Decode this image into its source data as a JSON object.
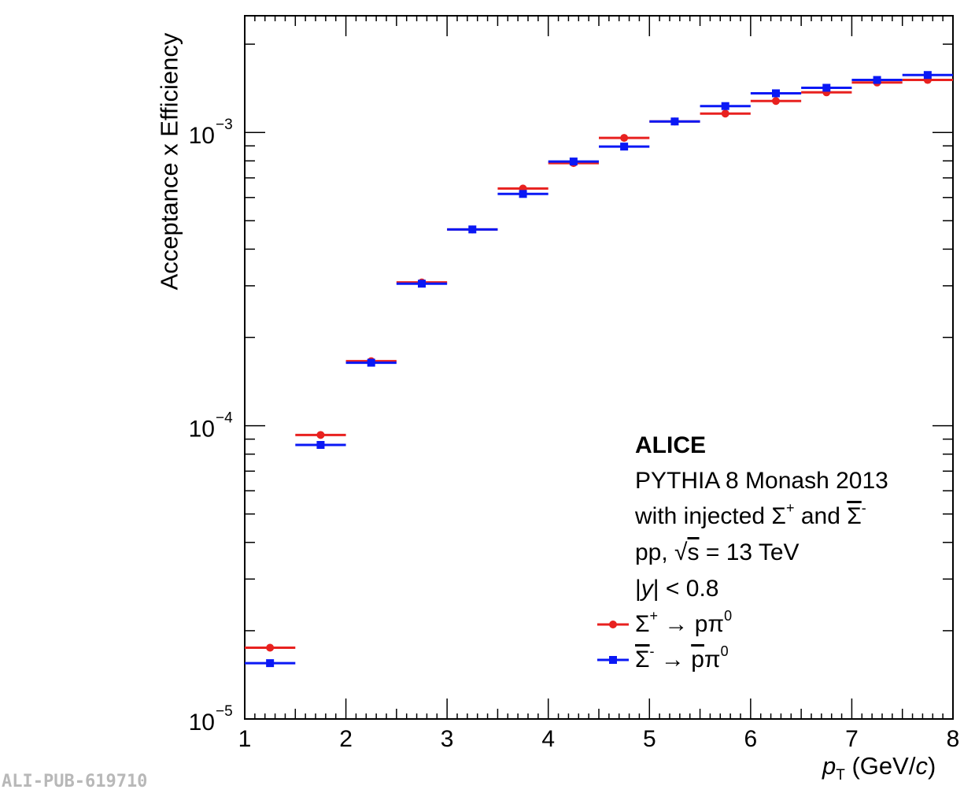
{
  "chart_data": {
    "type": "scatter",
    "title": "",
    "xlabel": "p_T (GeV/c)",
    "xlabel_parts": {
      "p": "p",
      "sub": "T",
      "unit_pre": " (GeV/",
      "unit_c": "c",
      "unit_post": ")"
    },
    "ylabel": "Acceptance x Efficiency",
    "xlim": [
      1,
      8
    ],
    "ylim": [
      1e-05,
      0.0025
    ],
    "yscale": "log",
    "x_tick_labels": [
      "1",
      "2",
      "3",
      "4",
      "5",
      "6",
      "7",
      "8"
    ],
    "y_tick_labels": [
      {
        "base": "10",
        "exp": "−5",
        "value": 1e-05
      },
      {
        "base": "10",
        "exp": "−4",
        "value": 0.0001
      },
      {
        "base": "10",
        "exp": "−3",
        "value": 0.001
      }
    ],
    "bin_edges": [
      1,
      1.5,
      2,
      2.5,
      3,
      3.5,
      4,
      4.5,
      5,
      5.5,
      6,
      6.5,
      7,
      7.5,
      8
    ],
    "series": [
      {
        "name": "Σ+ → pπ0",
        "color": "#e8211f",
        "marker": "circle",
        "values": [
          1.75e-05,
          9.3e-05,
          0.000166,
          0.000308,
          0.000467,
          0.000644,
          0.000786,
          0.000958,
          0.00109,
          0.00116,
          0.00128,
          0.00137,
          0.00148,
          0.00151
        ]
      },
      {
        "name": "anti-Σ- → anti-p π0",
        "color": "#0a18f5",
        "marker": "square",
        "values": [
          1.55e-05,
          8.6e-05,
          0.000164,
          0.000305,
          0.000467,
          0.000617,
          0.000796,
          0.000895,
          0.00109,
          0.00123,
          0.00136,
          0.00142,
          0.00151,
          0.00157
        ]
      }
    ],
    "legend_position": "bottom-right",
    "annotations": {
      "experiment": "ALICE",
      "generator": "PYTHIA 8 Monash 2013",
      "injected": {
        "pre": "with injected Σ",
        "sup1": "+",
        "mid": " and ",
        "sigma": "Σ",
        "sup2": "-"
      },
      "system": {
        "pre": "pp, ",
        "sqrt": "√",
        "s": "s",
        "post": " = 13 TeV"
      },
      "rapidity": {
        "pre": "|",
        "y": "y",
        "post": "| < 0.8"
      },
      "legend1": {
        "sigma": "Σ",
        "sup": "+",
        "arrow": " → pπ",
        "sup0": "0"
      },
      "legend2": {
        "sigma": "Σ",
        "sup": "-",
        "arrow": " → ",
        "p": "p",
        "pi": "π",
        "sup0": "0"
      }
    }
  },
  "watermark": "ALI-PUB-619710"
}
